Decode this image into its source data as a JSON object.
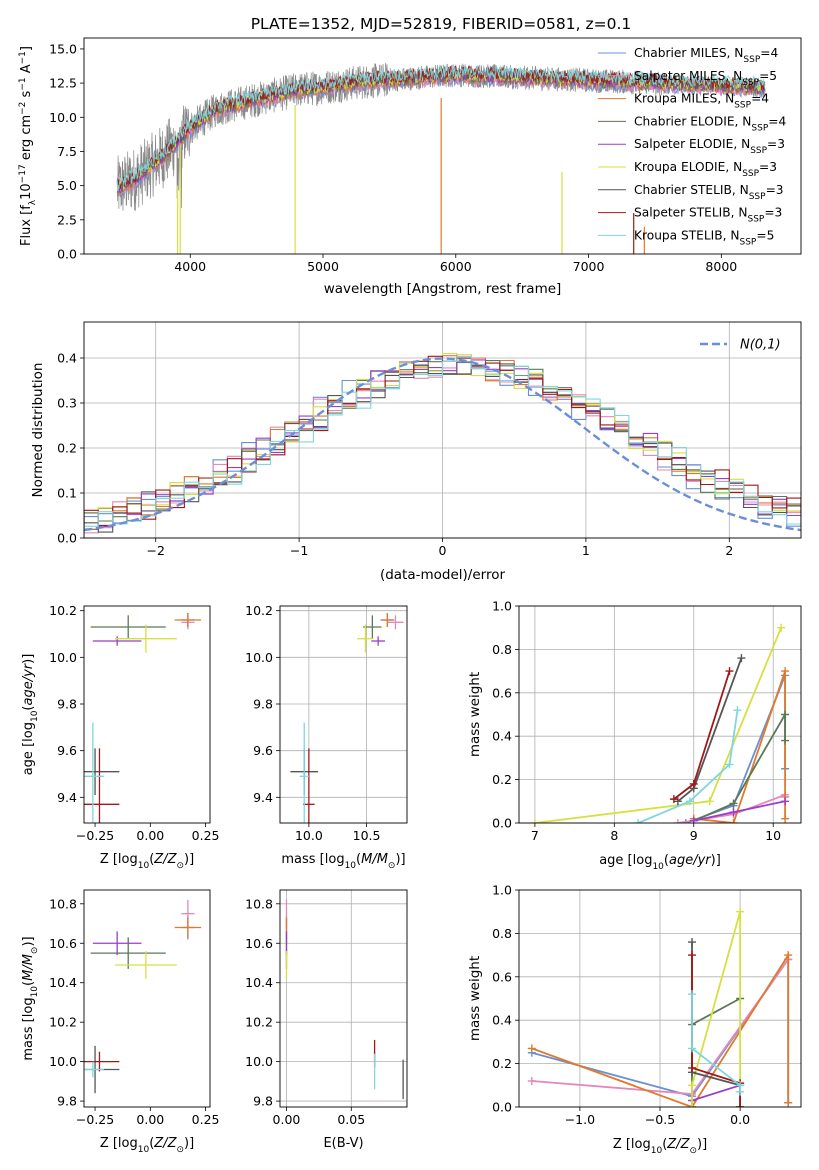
{
  "figure_title": "PLATE=1352, MJD=52819, FIBERID=0581, z=0.1",
  "series_styles": [
    {
      "name": "Chabrier MILES, N",
      "sub": "SSP",
      "suffix": "=4",
      "color": "#6a8fd8"
    },
    {
      "name": "Salpeter MILES, N",
      "sub": "SSP",
      "suffix": "=5",
      "color": "#e488bc"
    },
    {
      "name": "Kroupa MILES, N",
      "sub": "SSP",
      "suffix": "=4",
      "color": "#e07a2a"
    },
    {
      "name": "Chabrier ELODIE, N",
      "sub": "SSP",
      "suffix": "=4",
      "color": "#5a7a55"
    },
    {
      "name": "Salpeter ELODIE, N",
      "sub": "SSP",
      "suffix": "=3",
      "color": "#9a3ec8"
    },
    {
      "name": "Kroupa ELODIE, N",
      "sub": "SSP",
      "suffix": "=3",
      "color": "#d6e040"
    },
    {
      "name": "Chabrier STELIB, N",
      "sub": "SSP",
      "suffix": "=3",
      "color": "#555555"
    },
    {
      "name": "Salpeter STELIB, N",
      "sub": "SSP",
      "suffix": "=3",
      "color": "#a01818"
    },
    {
      "name": "Kroupa STELIB, N",
      "sub": "SSP",
      "suffix": "=5",
      "color": "#7fd7dd"
    }
  ],
  "chart_data": [
    {
      "id": "spectrum",
      "type": "line",
      "title": "PLATE=1352, MJD=52819, FIBERID=0581, z=0.1",
      "xlabel": "wavelength [Angstrom, rest frame]",
      "ylabel": "Flux [fλ10⁻¹⁷ erg cm⁻² s⁻¹ A⁻¹]",
      "xlim": [
        3200,
        8600
      ],
      "ylim": [
        0,
        15.8
      ],
      "xticks": [
        4000,
        5000,
        6000,
        7000,
        8000
      ],
      "yticks": [
        0.0,
        2.5,
        5.0,
        7.5,
        10.0,
        12.5,
        15.0
      ],
      "grid": false,
      "legend_position": "right",
      "data_color": "#888888",
      "model_color": "#7fd7dd",
      "continuum_x": [
        3450,
        3600,
        3800,
        4000,
        4200,
        4500,
        4800,
        5000,
        5300,
        5600,
        6000,
        6500,
        7000,
        7500,
        8000,
        8300
      ],
      "continuum_y": [
        4.8,
        5.6,
        7.2,
        9.2,
        10.6,
        11.3,
        12.0,
        12.2,
        12.6,
        12.8,
        13.1,
        12.9,
        12.7,
        12.5,
        12.3,
        12.2
      ]
    },
    {
      "id": "residuals",
      "type": "line",
      "xlabel": "(data-model)/error",
      "ylabel": "Normed distribution",
      "xlim": [
        -2.5,
        2.5
      ],
      "ylim": [
        0,
        0.48
      ],
      "xticks": [
        -2,
        -1,
        0,
        1,
        2
      ],
      "yticks": [
        0.0,
        0.1,
        0.2,
        0.3,
        0.4
      ],
      "grid": true,
      "legend_position": "top-right",
      "legend_label": "N(0,1)",
      "gaussian_color": "#6a8fd8"
    },
    {
      "id": "z-age",
      "type": "scatter",
      "xlabel": "Z [log10(Z/Z⊙)]",
      "ylabel": "age  [log10(age/yr)]",
      "xlim": [
        -0.3,
        0.27
      ],
      "ylim": [
        9.29,
        10.22
      ],
      "xticks": [
        -0.25,
        0.0,
        0.25
      ],
      "yticks": [
        9.4,
        9.6,
        9.8,
        10.0,
        10.2
      ],
      "grid": false,
      "points": [
        {
          "c": 0,
          "x": 0.17,
          "y": 10.16,
          "ex": 0.03,
          "ey": 0.03
        },
        {
          "c": 1,
          "x": 0.17,
          "y": 10.15,
          "ex": 0.03,
          "ey": 0.03
        },
        {
          "c": 2,
          "x": 0.17,
          "y": 10.16,
          "ex": 0.06,
          "ey": 0.03
        },
        {
          "c": 3,
          "x": -0.1,
          "y": 10.13,
          "ex": 0.17,
          "ey": 0.05
        },
        {
          "c": 4,
          "x": -0.15,
          "y": 10.07,
          "ex": 0.11,
          "ey": 0.02
        },
        {
          "c": 5,
          "x": -0.02,
          "y": 10.08,
          "ex": 0.14,
          "ey": 0.06
        },
        {
          "c": 6,
          "x": -0.25,
          "y": 9.51,
          "ex": 0.11,
          "ey": 0.1
        },
        {
          "c": 7,
          "x": -0.23,
          "y": 9.37,
          "ex": 0.09,
          "ey": 0.24
        },
        {
          "c": 8,
          "x": -0.26,
          "y": 9.49,
          "ex": 0.05,
          "ey": 0.23
        }
      ]
    },
    {
      "id": "mass-age",
      "type": "scatter",
      "xlabel": "mass [log10(M/M⊙)]",
      "ylabel": "",
      "xlim": [
        9.75,
        10.85
      ],
      "ylim": [
        9.29,
        10.22
      ],
      "xticks": [
        10.0,
        10.5
      ],
      "yticks": [
        9.4,
        9.6,
        9.8,
        10.0,
        10.2
      ],
      "grid": true,
      "points": [
        {
          "c": 0,
          "x": 10.68,
          "y": 10.16,
          "ex": 0.06,
          "ey": 0.03
        },
        {
          "c": 1,
          "x": 10.75,
          "y": 10.15,
          "ex": 0.07,
          "ey": 0.03
        },
        {
          "c": 2,
          "x": 10.68,
          "y": 10.16,
          "ex": 0.05,
          "ey": 0.03
        },
        {
          "c": 3,
          "x": 10.55,
          "y": 10.13,
          "ex": 0.08,
          "ey": 0.05
        },
        {
          "c": 4,
          "x": 10.6,
          "y": 10.07,
          "ex": 0.06,
          "ey": 0.02
        },
        {
          "c": 5,
          "x": 10.49,
          "y": 10.08,
          "ex": 0.07,
          "ey": 0.06
        },
        {
          "c": 6,
          "x": 9.96,
          "y": 9.51,
          "ex": 0.12,
          "ey": 0.1
        },
        {
          "c": 7,
          "x": 10.0,
          "y": 9.37,
          "ex": 0.05,
          "ey": 0.24
        },
        {
          "c": 8,
          "x": 9.96,
          "y": 9.49,
          "ex": 0.04,
          "ey": 0.23
        }
      ]
    },
    {
      "id": "age-weight",
      "type": "line",
      "xlabel": "age  [log10(age/yr)]",
      "ylabel": "mass weight",
      "xlim": [
        6.8,
        10.35
      ],
      "ylim": [
        0,
        1.0
      ],
      "xticks": [
        7,
        8,
        9,
        10
      ],
      "yticks": [
        0.0,
        0.2,
        0.4,
        0.6,
        0.8,
        1.0
      ],
      "grid": true,
      "series": [
        {
          "c": 0,
          "x": [
            8.9,
            9.5,
            10.15,
            10.15
          ],
          "y": [
            0.0,
            0.08,
            0.68,
            0.25
          ]
        },
        {
          "c": 1,
          "x": [
            8.8,
            9.5,
            10.15,
            10.15,
            10.15
          ],
          "y": [
            0.0,
            0.04,
            0.13,
            0.12,
            0.12
          ]
        },
        {
          "c": 2,
          "x": [
            9.0,
            9.5,
            10.15,
            10.15
          ],
          "y": [
            0.02,
            0.0,
            0.7,
            0.02
          ]
        },
        {
          "c": 3,
          "x": [
            9.0,
            9.5,
            10.15,
            10.15
          ],
          "y": [
            0.01,
            0.09,
            0.5,
            0.38
          ]
        },
        {
          "c": 4,
          "x": [
            9.0,
            9.5,
            10.15
          ],
          "y": [
            0.01,
            0.05,
            0.1
          ]
        },
        {
          "c": 5,
          "x": [
            7.0,
            9.2,
            10.1
          ],
          "y": [
            0.0,
            0.1,
            0.9
          ]
        },
        {
          "c": 6,
          "x": [
            8.8,
            9.0,
            9.6
          ],
          "y": [
            0.1,
            0.16,
            0.76
          ]
        },
        {
          "c": 7,
          "x": [
            8.75,
            9.0,
            9.45
          ],
          "y": [
            0.11,
            0.18,
            0.7
          ]
        },
        {
          "c": 8,
          "x": [
            8.3,
            8.95,
            9.45,
            9.55
          ],
          "y": [
            0.0,
            0.1,
            0.27,
            0.52
          ]
        }
      ]
    },
    {
      "id": "z-mass",
      "type": "scatter",
      "xlabel": "Z [log10(Z/Z⊙)]",
      "ylabel": "mass [log10(M/M⊙)]",
      "xlim": [
        -0.3,
        0.27
      ],
      "ylim": [
        9.77,
        10.87
      ],
      "xticks": [
        -0.25,
        0.0,
        0.25
      ],
      "yticks": [
        9.8,
        10.0,
        10.2,
        10.4,
        10.6,
        10.8
      ],
      "grid": false,
      "points": [
        {
          "c": 0,
          "x": 0.17,
          "y": 10.68,
          "ex": 0.03,
          "ey": 0.06
        },
        {
          "c": 1,
          "x": 0.17,
          "y": 10.75,
          "ex": 0.03,
          "ey": 0.07
        },
        {
          "c": 2,
          "x": 0.17,
          "y": 10.68,
          "ex": 0.06,
          "ey": 0.05
        },
        {
          "c": 3,
          "x": -0.1,
          "y": 10.55,
          "ex": 0.17,
          "ey": 0.08
        },
        {
          "c": 4,
          "x": -0.15,
          "y": 10.6,
          "ex": 0.11,
          "ey": 0.06
        },
        {
          "c": 5,
          "x": -0.02,
          "y": 10.49,
          "ex": 0.14,
          "ey": 0.07
        },
        {
          "c": 6,
          "x": -0.25,
          "y": 9.96,
          "ex": 0.11,
          "ey": 0.12
        },
        {
          "c": 7,
          "x": -0.23,
          "y": 10.0,
          "ex": 0.09,
          "ey": 0.05
        },
        {
          "c": 8,
          "x": -0.26,
          "y": 9.96,
          "ex": 0.05,
          "ey": 0.04
        }
      ]
    },
    {
      "id": "ebv-mass",
      "type": "scatter",
      "xlabel": "E(B-V)",
      "ylabel": "",
      "xlim": [
        -0.005,
        0.093
      ],
      "ylim": [
        9.77,
        10.87
      ],
      "xticks": [
        0.0,
        0.05
      ],
      "yticks": [
        9.8,
        10.0,
        10.2,
        10.4,
        10.6,
        10.8
      ],
      "grid": true,
      "points": [
        {
          "c": 0,
          "x": 0.0,
          "y": 10.68,
          "ex": 0.0,
          "ey": 0.06
        },
        {
          "c": 1,
          "x": 0.0,
          "y": 10.75,
          "ex": 0.0,
          "ey": 0.07
        },
        {
          "c": 2,
          "x": 0.0,
          "y": 10.68,
          "ex": 0.0,
          "ey": 0.05
        },
        {
          "c": 3,
          "x": 0.0,
          "y": 10.55,
          "ex": 0.0,
          "ey": 0.08
        },
        {
          "c": 4,
          "x": 0.0,
          "y": 10.6,
          "ex": 0.0,
          "ey": 0.06
        },
        {
          "c": 5,
          "x": 0.0,
          "y": 10.49,
          "ex": 0.0,
          "ey": 0.07
        },
        {
          "c": 6,
          "x": 0.09,
          "y": 9.91,
          "ex": 0.0,
          "ey": 0.1
        },
        {
          "c": 7,
          "x": 0.068,
          "y": 10.04,
          "ex": 0.0,
          "ey": 0.07
        },
        {
          "c": 8,
          "x": 0.068,
          "y": 9.95,
          "ex": 0.0,
          "ey": 0.09
        }
      ]
    },
    {
      "id": "z-weight",
      "type": "line",
      "xlabel": "Z [log10(Z/Z⊙)]",
      "ylabel": "mass weight",
      "xlim": [
        -1.38,
        0.38
      ],
      "ylim": [
        0,
        1.0
      ],
      "xticks": [
        -1.0,
        -0.5,
        0.0
      ],
      "yticks": [
        0.0,
        0.2,
        0.4,
        0.6,
        0.8,
        1.0
      ],
      "grid": true,
      "series": [
        {
          "c": 0,
          "x": [
            -1.3,
            -0.3,
            0.3,
            0.3
          ],
          "y": [
            0.25,
            0.05,
            0.68,
            0.02
          ]
        },
        {
          "c": 1,
          "x": [
            -1.3,
            -0.3,
            0.3
          ],
          "y": [
            0.12,
            0.06,
            0.68
          ]
        },
        {
          "c": 2,
          "x": [
            -1.3,
            -0.3,
            0.3,
            0.3
          ],
          "y": [
            0.27,
            0.0,
            0.7,
            0.02
          ]
        },
        {
          "c": 3,
          "x": [
            -0.3,
            -0.3,
            0.0
          ],
          "y": [
            0.0,
            0.38,
            0.5
          ]
        },
        {
          "c": 4,
          "x": [
            -0.3,
            -0.3,
            0.0
          ],
          "y": [
            0.0,
            0.03,
            0.1
          ]
        },
        {
          "c": 5,
          "x": [
            -0.3,
            -0.3,
            0.0,
            0.0
          ],
          "y": [
            0.0,
            0.1,
            0.9,
            0.0
          ]
        },
        {
          "c": 6,
          "x": [
            -0.3,
            -0.3,
            0.0,
            0.0
          ],
          "y": [
            0.76,
            0.16,
            0.1,
            0.0
          ]
        },
        {
          "c": 7,
          "x": [
            -0.3,
            -0.3,
            0.0,
            0.0
          ],
          "y": [
            0.7,
            0.18,
            0.11,
            0.0
          ]
        },
        {
          "c": 8,
          "x": [
            -0.3,
            -0.3,
            0.0,
            0.0
          ],
          "y": [
            0.52,
            0.27,
            0.1,
            0.07
          ]
        }
      ]
    }
  ]
}
